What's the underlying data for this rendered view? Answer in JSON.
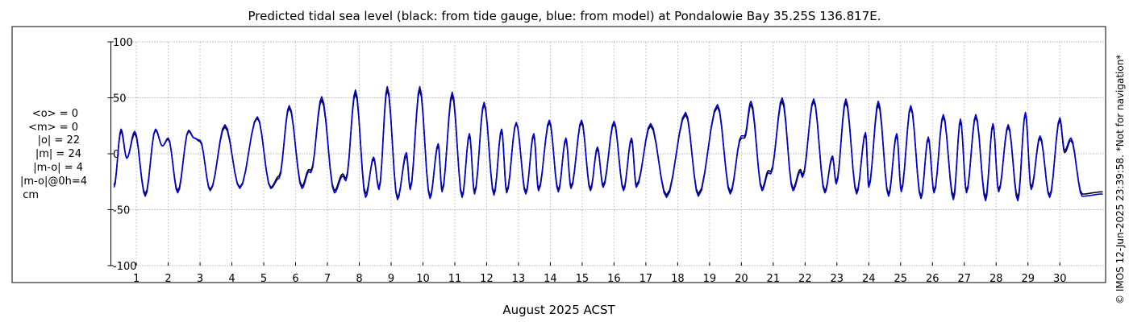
{
  "chart_data": {
    "type": "line",
    "title": "Predicted tidal sea level (black: from tide gauge, blue: from model) at Pondalowie Bay 35.25S 136.817E.",
    "xlabel": "August 2025 ACST",
    "ylabel": "",
    "ylim": [
      -100,
      100
    ],
    "xlim": [
      0.2,
      31.4
    ],
    "grid": true,
    "y_ticks": [
      "100",
      "50",
      "0",
      "-50",
      "-100"
    ],
    "x_ticks": [
      "1",
      "2",
      "3",
      "4",
      "5",
      "6",
      "7",
      "8",
      "9",
      "10",
      "11",
      "12",
      "13",
      "14",
      "15",
      "16",
      "17",
      "18",
      "19",
      "20",
      "21",
      "22",
      "23",
      "24",
      "25",
      "26",
      "27",
      "28",
      "29",
      "30"
    ],
    "stats": [
      "<o> = 0",
      "<m> = 0",
      "|o| = 22",
      "|m| = 24",
      "|m-o| = 4",
      "|m-o|@0h=4",
      "cm"
    ],
    "copyright": "© IMOS 12-Jun-2025 23:39:58. *Not for navigation*",
    "series": [
      {
        "name": "tide gauge",
        "color": "#000000",
        "extrema": [
          [
            0.3,
            -28
          ],
          [
            0.52,
            20
          ],
          [
            0.7,
            -4
          ],
          [
            0.95,
            18
          ],
          [
            1.28,
            -36
          ],
          [
            1.6,
            21
          ],
          [
            1.82,
            7
          ],
          [
            2.0,
            13
          ],
          [
            2.3,
            -33
          ],
          [
            2.64,
            20
          ],
          [
            2.82,
            14
          ],
          [
            3.0,
            11
          ],
          [
            3.32,
            -32
          ],
          [
            3.78,
            24
          ],
          [
            4.25,
            -30
          ],
          [
            4.8,
            32
          ],
          [
            5.22,
            -30
          ],
          [
            5.48,
            -20
          ],
          [
            5.8,
            41
          ],
          [
            6.2,
            -29
          ],
          [
            6.42,
            -14
          ],
          [
            6.48,
            -15
          ],
          [
            6.82,
            48
          ],
          [
            7.22,
            -33
          ],
          [
            7.48,
            -18
          ],
          [
            7.58,
            -22
          ],
          [
            7.88,
            54
          ],
          [
            8.2,
            -36
          ],
          [
            8.45,
            -5
          ],
          [
            8.62,
            -30
          ],
          [
            8.88,
            57
          ],
          [
            9.2,
            -39
          ],
          [
            9.48,
            -2
          ],
          [
            9.6,
            -30
          ],
          [
            9.9,
            57
          ],
          [
            10.22,
            -38
          ],
          [
            10.48,
            7
          ],
          [
            10.6,
            -32
          ],
          [
            10.92,
            52
          ],
          [
            11.23,
            -37
          ],
          [
            11.46,
            16
          ],
          [
            11.62,
            -34
          ],
          [
            11.92,
            44
          ],
          [
            12.23,
            -35
          ],
          [
            12.47,
            20
          ],
          [
            12.63,
            -33
          ],
          [
            12.93,
            27
          ],
          [
            13.23,
            -34
          ],
          [
            13.48,
            16
          ],
          [
            13.63,
            -31
          ],
          [
            13.97,
            28
          ],
          [
            14.25,
            -32
          ],
          [
            14.49,
            12
          ],
          [
            14.65,
            -29
          ],
          [
            14.98,
            28
          ],
          [
            15.26,
            -31
          ],
          [
            15.48,
            4
          ],
          [
            15.66,
            -28
          ],
          [
            16.0,
            27
          ],
          [
            16.3,
            -31
          ],
          [
            16.55,
            12
          ],
          [
            16.7,
            -28
          ],
          [
            17.15,
            25
          ],
          [
            17.65,
            -37
          ],
          [
            18.25,
            35
          ],
          [
            18.65,
            -36
          ],
          [
            19.25,
            42
          ],
          [
            19.65,
            -34
          ],
          [
            20.0,
            14
          ],
          [
            20.1,
            14
          ],
          [
            20.3,
            44
          ],
          [
            20.65,
            -31
          ],
          [
            20.85,
            -15
          ],
          [
            20.92,
            -16
          ],
          [
            21.28,
            47
          ],
          [
            21.62,
            -31
          ],
          [
            21.85,
            -14
          ],
          [
            21.92,
            -19
          ],
          [
            22.27,
            47
          ],
          [
            22.62,
            -33
          ],
          [
            22.86,
            -4
          ],
          [
            22.98,
            -25
          ],
          [
            23.28,
            46
          ],
          [
            23.62,
            -34
          ],
          [
            23.9,
            17
          ],
          [
            24.0,
            -28
          ],
          [
            24.3,
            44
          ],
          [
            24.62,
            -36
          ],
          [
            24.88,
            16
          ],
          [
            25.02,
            -32
          ],
          [
            25.32,
            41
          ],
          [
            25.64,
            -38
          ],
          [
            25.87,
            13
          ],
          [
            26.05,
            -33
          ],
          [
            26.34,
            33
          ],
          [
            26.66,
            -38
          ],
          [
            26.88,
            29
          ],
          [
            27.07,
            -33
          ],
          [
            27.36,
            33
          ],
          [
            27.67,
            -39
          ],
          [
            27.9,
            25
          ],
          [
            28.08,
            -32
          ],
          [
            28.38,
            24
          ],
          [
            28.68,
            -39
          ],
          [
            28.92,
            35
          ],
          [
            29.1,
            -30
          ],
          [
            29.38,
            14
          ],
          [
            29.68,
            -37
          ],
          [
            30.0,
            30
          ],
          [
            30.15,
            1
          ],
          [
            30.35,
            12
          ],
          [
            30.7,
            -36
          ],
          [
            31.35,
            -34
          ]
        ]
      },
      {
        "name": "model",
        "color": "#0000dd",
        "extrema": [
          [
            0.3,
            -30
          ],
          [
            0.52,
            22
          ],
          [
            0.7,
            -4
          ],
          [
            0.95,
            20
          ],
          [
            1.28,
            -38
          ],
          [
            1.6,
            22
          ],
          [
            1.82,
            7
          ],
          [
            2.0,
            14
          ],
          [
            2.3,
            -35
          ],
          [
            2.64,
            21
          ],
          [
            2.82,
            14
          ],
          [
            3.0,
            12
          ],
          [
            3.32,
            -33
          ],
          [
            3.78,
            26
          ],
          [
            4.25,
            -31
          ],
          [
            4.8,
            33
          ],
          [
            5.22,
            -31
          ],
          [
            5.48,
            -22
          ],
          [
            5.8,
            43
          ],
          [
            6.2,
            -31
          ],
          [
            6.42,
            -16
          ],
          [
            6.48,
            -17
          ],
          [
            6.82,
            51
          ],
          [
            7.22,
            -35
          ],
          [
            7.48,
            -20
          ],
          [
            7.58,
            -24
          ],
          [
            7.88,
            57
          ],
          [
            8.2,
            -39
          ],
          [
            8.45,
            -3
          ],
          [
            8.62,
            -32
          ],
          [
            8.88,
            60
          ],
          [
            9.2,
            -41
          ],
          [
            9.48,
            1
          ],
          [
            9.6,
            -32
          ],
          [
            9.9,
            60
          ],
          [
            10.22,
            -40
          ],
          [
            10.48,
            9
          ],
          [
            10.6,
            -34
          ],
          [
            10.92,
            55
          ],
          [
            11.23,
            -39
          ],
          [
            11.46,
            18
          ],
          [
            11.62,
            -36
          ],
          [
            11.92,
            46
          ],
          [
            12.23,
            -37
          ],
          [
            12.47,
            22
          ],
          [
            12.63,
            -35
          ],
          [
            12.93,
            28
          ],
          [
            13.23,
            -36
          ],
          [
            13.48,
            18
          ],
          [
            13.63,
            -33
          ],
          [
            13.97,
            30
          ],
          [
            14.25,
            -34
          ],
          [
            14.49,
            14
          ],
          [
            14.65,
            -31
          ],
          [
            14.98,
            30
          ],
          [
            15.26,
            -33
          ],
          [
            15.48,
            6
          ],
          [
            15.66,
            -30
          ],
          [
            16.0,
            29
          ],
          [
            16.3,
            -33
          ],
          [
            16.55,
            14
          ],
          [
            16.7,
            -30
          ],
          [
            17.15,
            27
          ],
          [
            17.65,
            -39
          ],
          [
            18.25,
            37
          ],
          [
            18.65,
            -38
          ],
          [
            19.25,
            44
          ],
          [
            19.65,
            -36
          ],
          [
            20.0,
            16
          ],
          [
            20.1,
            16
          ],
          [
            20.3,
            47
          ],
          [
            20.65,
            -33
          ],
          [
            20.85,
            -17
          ],
          [
            20.92,
            -18
          ],
          [
            21.28,
            50
          ],
          [
            21.62,
            -33
          ],
          [
            21.85,
            -16
          ],
          [
            21.92,
            -21
          ],
          [
            22.27,
            49
          ],
          [
            22.62,
            -35
          ],
          [
            22.86,
            -2
          ],
          [
            22.98,
            -27
          ],
          [
            23.28,
            49
          ],
          [
            23.62,
            -36
          ],
          [
            23.9,
            19
          ],
          [
            24.0,
            -30
          ],
          [
            24.3,
            47
          ],
          [
            24.62,
            -38
          ],
          [
            24.88,
            18
          ],
          [
            25.02,
            -34
          ],
          [
            25.32,
            43
          ],
          [
            25.64,
            -40
          ],
          [
            25.87,
            15
          ],
          [
            26.05,
            -35
          ],
          [
            26.34,
            35
          ],
          [
            26.66,
            -41
          ],
          [
            26.88,
            31
          ],
          [
            27.07,
            -35
          ],
          [
            27.36,
            35
          ],
          [
            27.67,
            -42
          ],
          [
            27.9,
            27
          ],
          [
            28.08,
            -34
          ],
          [
            28.38,
            26
          ],
          [
            28.68,
            -42
          ],
          [
            28.92,
            37
          ],
          [
            29.1,
            -32
          ],
          [
            29.38,
            16
          ],
          [
            29.68,
            -39
          ],
          [
            30.0,
            32
          ],
          [
            30.15,
            3
          ],
          [
            30.35,
            14
          ],
          [
            30.7,
            -38
          ],
          [
            31.35,
            -36
          ]
        ]
      }
    ]
  }
}
